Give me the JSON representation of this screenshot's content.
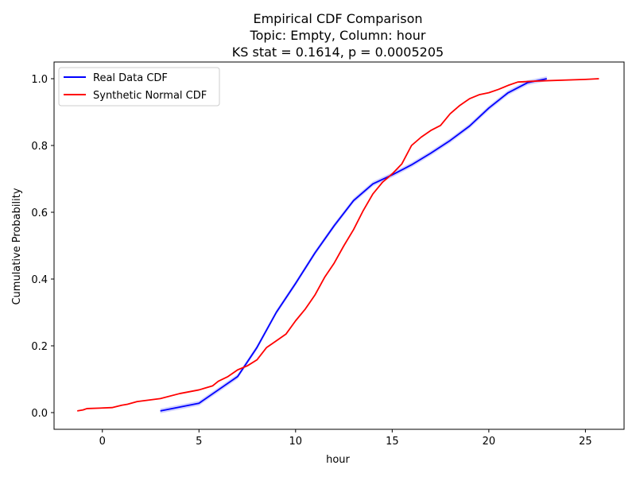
{
  "chart_data": {
    "type": "line",
    "title_lines": [
      "Empirical CDF Comparison",
      "Topic: Empty, Column: hour",
      "KS stat = 0.1614, p = 0.0005205"
    ],
    "xlabel": "hour",
    "ylabel": "Cumulative Probability",
    "xlim": [
      -2.5,
      27
    ],
    "ylim": [
      -0.05,
      1.05
    ],
    "xticks": [
      0,
      5,
      10,
      15,
      20,
      25
    ],
    "yticks": [
      0.0,
      0.2,
      0.4,
      0.6,
      0.8,
      1.0
    ],
    "xtick_labels": [
      "0",
      "5",
      "10",
      "15",
      "20",
      "25"
    ],
    "ytick_labels": [
      "0.0",
      "0.2",
      "0.4",
      "0.6",
      "0.8",
      "1.0"
    ],
    "grid": false,
    "legend_position": "top-left",
    "series": [
      {
        "name": "Real Data CDF",
        "color": "#0000ff",
        "band_color": "#9999ff",
        "x": [
          3,
          5,
          6,
          7,
          8,
          9,
          10,
          11,
          12,
          13,
          14,
          15,
          16,
          17,
          18,
          19,
          20,
          21,
          22,
          23
        ],
        "y": [
          0.005,
          0.028,
          0.068,
          0.108,
          0.195,
          0.3,
          0.387,
          0.478,
          0.56,
          0.635,
          0.685,
          0.712,
          0.742,
          0.777,
          0.815,
          0.858,
          0.912,
          0.958,
          0.988,
          1.0
        ]
      },
      {
        "name": "Synthetic Normal CDF",
        "color": "#ff0000",
        "x": [
          -1.3,
          -1.0,
          -0.8,
          0.5,
          1.0,
          1.3,
          1.8,
          3.0,
          4.0,
          5.0,
          5.7,
          6.0,
          6.5,
          7.0,
          7.5,
          8.0,
          8.5,
          9.0,
          9.5,
          10.0,
          10.5,
          11.0,
          11.5,
          12.0,
          12.5,
          13.0,
          13.5,
          14.0,
          14.5,
          15.0,
          15.5,
          16.0,
          16.5,
          17.0,
          17.5,
          18.0,
          18.5,
          19.0,
          19.5,
          20.0,
          20.5,
          21.0,
          21.5,
          22.5,
          25.0,
          25.7
        ],
        "y": [
          0.005,
          0.008,
          0.012,
          0.015,
          0.022,
          0.025,
          0.033,
          0.042,
          0.057,
          0.068,
          0.08,
          0.094,
          0.108,
          0.128,
          0.14,
          0.158,
          0.195,
          0.215,
          0.235,
          0.275,
          0.31,
          0.352,
          0.405,
          0.448,
          0.5,
          0.548,
          0.605,
          0.655,
          0.69,
          0.715,
          0.745,
          0.8,
          0.825,
          0.845,
          0.86,
          0.895,
          0.92,
          0.94,
          0.952,
          0.958,
          0.968,
          0.98,
          0.99,
          0.993,
          0.998,
          1.0
        ]
      }
    ]
  }
}
